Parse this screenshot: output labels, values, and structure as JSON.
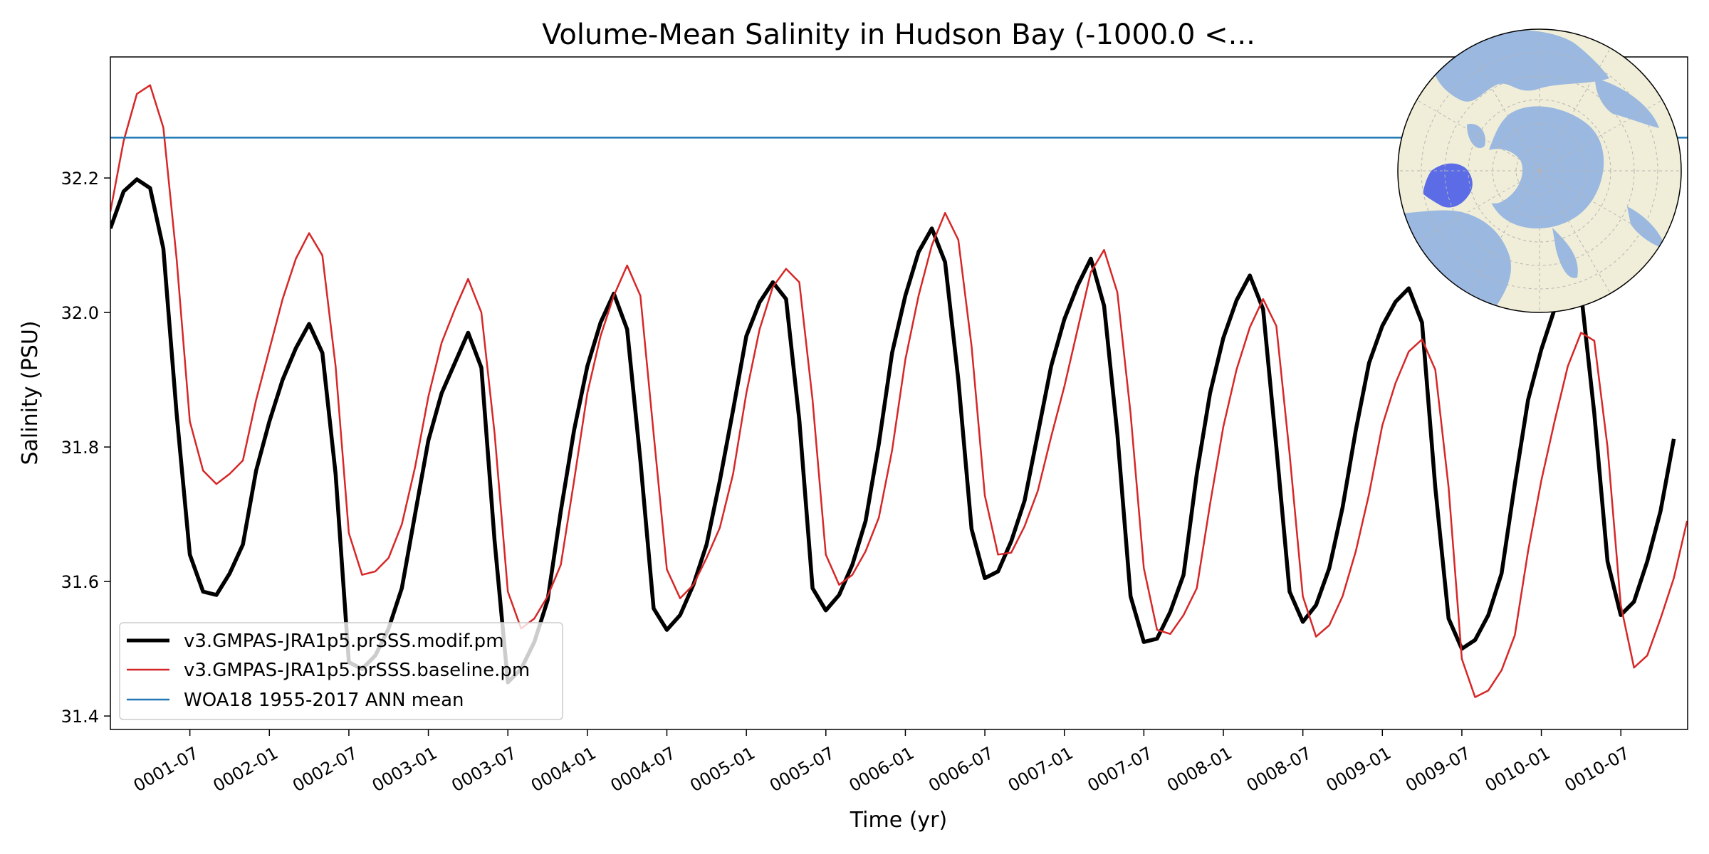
{
  "chart_data": {
    "type": "line",
    "title": "Volume-Mean Salinity in Hudson Bay (-1000.0 <...",
    "xlabel": "Time (yr)",
    "ylabel": "Salinity (PSU)",
    "xlim": [
      1.0,
      10.92
    ],
    "ylim": [
      31.38,
      32.38
    ],
    "yticks": [
      31.4,
      31.6,
      31.8,
      32.0,
      32.2
    ],
    "ytick_labels": [
      "31.4",
      "31.6",
      "31.8",
      "32.0",
      "32.2"
    ],
    "xticks": [
      {
        "t": 1.5,
        "label": "0001-07"
      },
      {
        "t": 2.0,
        "label": "0002-01"
      },
      {
        "t": 2.5,
        "label": "0002-07"
      },
      {
        "t": 3.0,
        "label": "0003-01"
      },
      {
        "t": 3.5,
        "label": "0003-07"
      },
      {
        "t": 4.0,
        "label": "0004-01"
      },
      {
        "t": 4.5,
        "label": "0004-07"
      },
      {
        "t": 5.0,
        "label": "0005-01"
      },
      {
        "t": 5.5,
        "label": "0005-07"
      },
      {
        "t": 6.0,
        "label": "0006-01"
      },
      {
        "t": 6.5,
        "label": "0006-07"
      },
      {
        "t": 7.0,
        "label": "0007-01"
      },
      {
        "t": 7.5,
        "label": "0007-07"
      },
      {
        "t": 8.0,
        "label": "0008-01"
      },
      {
        "t": 8.5,
        "label": "0008-07"
      },
      {
        "t": 9.0,
        "label": "0009-01"
      },
      {
        "t": 9.5,
        "label": "0009-07"
      },
      {
        "t": 10.0,
        "label": "0010-01"
      },
      {
        "t": 10.5,
        "label": "0010-07"
      }
    ],
    "x_start": 1.0,
    "x_step": 0.08333,
    "series": [
      {
        "name": "v3.GMPAS-JRA1p5.prSSS.modif.pm",
        "color": "#000000",
        "line_width": 3,
        "values": [
          32.125,
          32.18,
          32.198,
          32.185,
          32.095,
          31.85,
          31.64,
          31.585,
          31.58,
          31.612,
          31.655,
          31.765,
          31.838,
          31.9,
          31.947,
          31.983,
          31.94,
          31.76,
          31.48,
          31.47,
          31.49,
          31.53,
          31.59,
          31.7,
          31.81,
          31.88,
          31.925,
          31.97,
          31.918,
          31.66,
          31.45,
          31.47,
          31.51,
          31.572,
          31.705,
          31.825,
          31.92,
          31.985,
          32.028,
          31.975,
          31.78,
          31.56,
          31.528,
          31.55,
          31.595,
          31.655,
          31.75,
          31.855,
          31.965,
          32.015,
          32.045,
          32.02,
          31.84,
          31.59,
          31.557,
          31.58,
          31.625,
          31.69,
          31.805,
          31.94,
          32.025,
          32.09,
          32.125,
          32.075,
          31.9,
          31.678,
          31.605,
          31.615,
          31.66,
          31.72,
          31.82,
          31.92,
          31.99,
          32.04,
          32.08,
          32.01,
          31.82,
          31.578,
          31.51,
          31.515,
          31.555,
          31.61,
          31.76,
          31.88,
          31.962,
          32.018,
          32.055,
          32.005,
          31.8,
          31.585,
          31.54,
          31.565,
          31.62,
          31.71,
          31.825,
          31.925,
          31.98,
          32.016,
          32.036,
          31.985,
          31.74,
          31.545,
          31.5,
          31.513,
          31.55,
          31.612,
          31.745,
          31.87,
          31.945,
          32.005,
          32.05,
          32.03,
          31.85,
          31.63,
          31.55,
          31.57,
          31.63,
          31.705,
          31.812
        ]
      },
      {
        "name": "v3.GMPAS-JRA1p5.prSSS.baseline.pm",
        "color": "#d62728",
        "line_width": 2,
        "values": [
          32.15,
          32.255,
          32.325,
          32.338,
          32.275,
          32.08,
          31.838,
          31.765,
          31.745,
          31.76,
          31.78,
          31.87,
          31.945,
          32.02,
          32.08,
          32.118,
          32.085,
          31.92,
          31.672,
          31.61,
          31.615,
          31.635,
          31.685,
          31.77,
          31.875,
          31.955,
          32.005,
          32.05,
          32.0,
          31.82,
          31.585,
          31.53,
          31.545,
          31.578,
          31.625,
          31.75,
          31.88,
          31.965,
          32.025,
          32.07,
          32.025,
          31.82,
          31.618,
          31.575,
          31.595,
          31.635,
          31.68,
          31.76,
          31.88,
          31.975,
          32.038,
          32.065,
          32.045,
          31.87,
          31.64,
          31.595,
          31.61,
          31.645,
          31.695,
          31.795,
          31.93,
          32.025,
          32.1,
          32.148,
          32.108,
          31.95,
          31.728,
          31.64,
          31.643,
          31.682,
          31.735,
          31.815,
          31.89,
          31.975,
          32.06,
          32.093,
          32.03,
          31.85,
          31.62,
          31.528,
          31.522,
          31.55,
          31.59,
          31.715,
          31.83,
          31.915,
          31.978,
          32.02,
          31.98,
          31.79,
          31.578,
          31.518,
          31.535,
          31.578,
          31.645,
          31.73,
          31.832,
          31.895,
          31.942,
          31.96,
          31.915,
          31.74,
          31.485,
          31.428,
          31.438,
          31.468,
          31.52,
          31.645,
          31.75,
          31.838,
          31.92,
          31.97,
          31.958,
          31.8,
          31.565,
          31.472,
          31.49,
          31.545,
          31.605,
          31.69
        ]
      },
      {
        "name": "WOA18 1955-2017 ANN mean",
        "color": "#1f77b4",
        "line_width": 2,
        "constant": 32.26
      }
    ],
    "legend_position": "lower left",
    "inset": "polar map of the Arctic with Hudson Bay region highlighted",
    "colors": {
      "ocean": "#9bb8e0",
      "land": "#f0eed8",
      "region": "#4a5de8",
      "grid": "#b5b5b5"
    }
  }
}
